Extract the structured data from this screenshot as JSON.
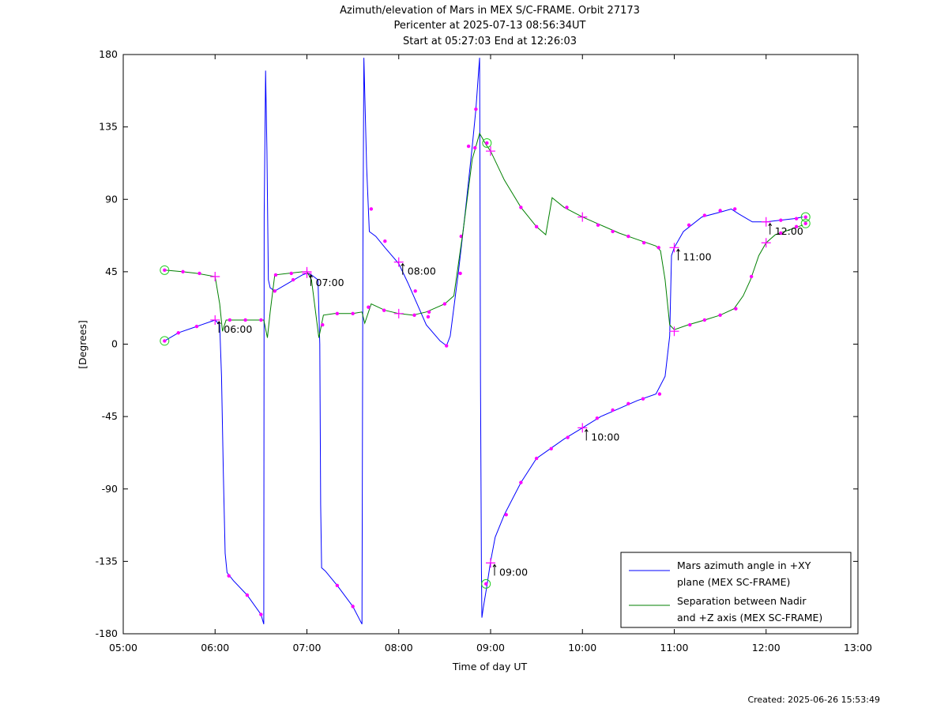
{
  "chart_data": {
    "type": "line",
    "title_lines": [
      "Azimuth/elevation of Mars in MEX S/C-FRAME.  Orbit 27173",
      "Pericenter at 2025-07-13 08:56:34UT",
      "Start at 05:27:03 End at 12:26:03"
    ],
    "xlabel": "Time of day UT",
    "ylabel": "[Degrees]",
    "xlim": [
      5.0,
      13.0
    ],
    "ylim": [
      -180,
      180
    ],
    "x_ticks": [
      5,
      6,
      7,
      8,
      9,
      10,
      11,
      12,
      13
    ],
    "x_tick_labels": [
      "05:00",
      "06:00",
      "07:00",
      "08:00",
      "09:00",
      "10:00",
      "11:00",
      "12:00",
      "13:00"
    ],
    "y_ticks": [
      180,
      135,
      90,
      45,
      0,
      -45,
      -90,
      -135,
      -180
    ],
    "y_tick_labels": [
      "180",
      "135",
      "90",
      "45",
      "0",
      "-45",
      "-90",
      "-135",
      "-180"
    ],
    "grid": false,
    "legend_position": "bottom-right",
    "series": [
      {
        "name": "Mars azimuth angle in +XY plane (MEX SC-FRAME)",
        "legend_lines": [
          "Mars azimuth angle in +XY",
          "plane (MEX SC-FRAME)"
        ],
        "color": "#0000ff",
        "points": [
          [
            5.45,
            2
          ],
          [
            5.6,
            7
          ],
          [
            5.8,
            11
          ],
          [
            6.0,
            15
          ],
          [
            6.05,
            12
          ],
          [
            6.07,
            -20
          ],
          [
            6.09,
            -80
          ],
          [
            6.11,
            -130
          ],
          [
            6.13,
            -142
          ],
          [
            6.2,
            -147
          ],
          [
            6.35,
            -156
          ],
          [
            6.5,
            -168
          ],
          [
            6.53,
            -174
          ],
          [
            6.535,
            80
          ],
          [
            6.55,
            170
          ],
          [
            6.565,
            120
          ],
          [
            6.58,
            40
          ],
          [
            6.6,
            35
          ],
          [
            6.65,
            33
          ],
          [
            6.8,
            38
          ],
          [
            6.95,
            43
          ],
          [
            7.0,
            44
          ],
          [
            7.05,
            43
          ],
          [
            7.12,
            40
          ],
          [
            7.14,
            0
          ],
          [
            7.15,
            -100
          ],
          [
            7.16,
            -139
          ],
          [
            7.2,
            -141
          ],
          [
            7.33,
            -150
          ],
          [
            7.5,
            -163
          ],
          [
            7.6,
            -174
          ],
          [
            7.61,
            60
          ],
          [
            7.62,
            178
          ],
          [
            7.65,
            110
          ],
          [
            7.68,
            70
          ],
          [
            7.75,
            67
          ],
          [
            7.85,
            60
          ],
          [
            8.0,
            50
          ],
          [
            8.1,
            38
          ],
          [
            8.2,
            25
          ],
          [
            8.3,
            12
          ],
          [
            8.45,
            2
          ],
          [
            8.52,
            -1
          ],
          [
            8.56,
            5
          ],
          [
            8.65,
            45
          ],
          [
            8.72,
            80
          ],
          [
            8.8,
            123
          ],
          [
            8.84,
            146
          ],
          [
            8.87,
            170
          ],
          [
            8.88,
            178
          ],
          [
            8.885,
            100
          ],
          [
            8.89,
            -20
          ],
          [
            8.9,
            -140
          ],
          [
            8.905,
            -170
          ],
          [
            8.92,
            -164
          ],
          [
            8.96,
            -150
          ],
          [
            9.0,
            -135
          ],
          [
            9.05,
            -120
          ],
          [
            9.15,
            -106
          ],
          [
            9.33,
            -86
          ],
          [
            9.5,
            -71
          ],
          [
            9.65,
            -65
          ],
          [
            9.8,
            -59
          ],
          [
            10.0,
            -52
          ],
          [
            10.2,
            -45
          ],
          [
            10.4,
            -40
          ],
          [
            10.6,
            -35
          ],
          [
            10.8,
            -31
          ],
          [
            10.9,
            -20
          ],
          [
            10.95,
            5
          ],
          [
            10.97,
            55
          ],
          [
            11.0,
            60
          ],
          [
            11.1,
            70
          ],
          [
            11.3,
            79
          ],
          [
            11.5,
            82
          ],
          [
            11.62,
            84
          ],
          [
            11.7,
            81
          ],
          [
            11.85,
            76
          ],
          [
            12.0,
            76
          ],
          [
            12.15,
            77
          ],
          [
            12.3,
            78
          ],
          [
            12.4,
            79
          ]
        ],
        "markers": [
          [
            5.6,
            7
          ],
          [
            5.8,
            11
          ],
          [
            6.15,
            -144
          ],
          [
            6.35,
            -156
          ],
          [
            6.5,
            -168
          ],
          [
            6.65,
            33
          ],
          [
            6.85,
            40
          ],
          [
            7.33,
            -150
          ],
          [
            7.5,
            -163
          ],
          [
            7.7,
            84
          ],
          [
            7.85,
            64
          ],
          [
            8.18,
            33
          ],
          [
            8.32,
            17
          ],
          [
            8.52,
            -1
          ],
          [
            8.68,
            67
          ],
          [
            8.76,
            123
          ],
          [
            8.84,
            146
          ],
          [
            9.17,
            -106
          ],
          [
            9.33,
            -86
          ],
          [
            9.5,
            -71
          ],
          [
            9.66,
            -65
          ],
          [
            9.84,
            -58
          ],
          [
            10.16,
            -46
          ],
          [
            10.33,
            -41
          ],
          [
            10.5,
            -37
          ],
          [
            10.66,
            -34
          ],
          [
            10.84,
            -31
          ],
          [
            11.16,
            74
          ],
          [
            11.33,
            80
          ],
          [
            11.5,
            83
          ],
          [
            11.66,
            84
          ],
          [
            12.16,
            77
          ],
          [
            12.33,
            78
          ]
        ],
        "hour_markers": [
          [
            6.0,
            15
          ],
          [
            7.0,
            44
          ],
          [
            8.0,
            51
          ],
          [
            9.0,
            -136
          ],
          [
            10.0,
            -52
          ],
          [
            11.0,
            60
          ],
          [
            12.0,
            76
          ]
        ],
        "endpoints": [
          [
            5.45,
            2
          ],
          [
            8.95,
            -149
          ]
        ]
      },
      {
        "name": "Separation between Nadir and +Z axis (MEX SC-FRAME)",
        "legend_lines": [
          "Separation between Nadir",
          "and +Z axis (MEX SC-FRAME)"
        ],
        "color": "#008000",
        "points": [
          [
            5.45,
            46
          ],
          [
            5.65,
            45
          ],
          [
            5.8,
            44
          ],
          [
            6.0,
            42
          ],
          [
            6.05,
            25
          ],
          [
            6.08,
            8
          ],
          [
            6.12,
            15
          ],
          [
            6.3,
            15
          ],
          [
            6.4,
            15
          ],
          [
            6.53,
            15
          ],
          [
            6.57,
            4
          ],
          [
            6.6,
            20
          ],
          [
            6.65,
            43
          ],
          [
            6.8,
            44
          ],
          [
            6.95,
            45
          ],
          [
            7.0,
            45
          ],
          [
            7.05,
            40
          ],
          [
            7.13,
            4
          ],
          [
            7.18,
            18
          ],
          [
            7.3,
            19
          ],
          [
            7.5,
            19
          ],
          [
            7.6,
            20
          ],
          [
            7.63,
            13
          ],
          [
            7.7,
            25
          ],
          [
            7.85,
            21
          ],
          [
            8.0,
            19
          ],
          [
            8.15,
            18
          ],
          [
            8.3,
            20
          ],
          [
            8.5,
            25
          ],
          [
            8.6,
            30
          ],
          [
            8.7,
            70
          ],
          [
            8.8,
            115
          ],
          [
            8.88,
            131
          ],
          [
            8.95,
            124
          ],
          [
            9.0,
            120
          ],
          [
            9.15,
            102
          ],
          [
            9.33,
            85
          ],
          [
            9.5,
            73
          ],
          [
            9.6,
            68
          ],
          [
            9.67,
            91
          ],
          [
            9.8,
            85
          ],
          [
            10.0,
            79
          ],
          [
            10.2,
            74
          ],
          [
            10.4,
            69
          ],
          [
            10.6,
            65
          ],
          [
            10.8,
            61
          ],
          [
            10.85,
            58
          ],
          [
            10.9,
            40
          ],
          [
            10.95,
            12
          ],
          [
            11.0,
            9
          ],
          [
            11.15,
            12
          ],
          [
            11.33,
            15
          ],
          [
            11.5,
            18
          ],
          [
            11.65,
            22
          ],
          [
            11.75,
            30
          ],
          [
            11.83,
            40
          ],
          [
            11.92,
            55
          ],
          [
            12.0,
            63
          ],
          [
            12.1,
            68
          ],
          [
            12.2,
            70
          ],
          [
            12.3,
            72
          ],
          [
            12.4,
            74
          ]
        ],
        "markers": [
          [
            5.65,
            45
          ],
          [
            5.83,
            44
          ],
          [
            6.16,
            15
          ],
          [
            6.33,
            15
          ],
          [
            6.5,
            15
          ],
          [
            6.66,
            43
          ],
          [
            6.83,
            44
          ],
          [
            7.17,
            12
          ],
          [
            7.33,
            19
          ],
          [
            7.5,
            19
          ],
          [
            7.67,
            23
          ],
          [
            7.84,
            21
          ],
          [
            8.17,
            18
          ],
          [
            8.33,
            20
          ],
          [
            8.5,
            25
          ],
          [
            8.67,
            44
          ],
          [
            8.83,
            122
          ],
          [
            9.33,
            85
          ],
          [
            9.5,
            73
          ],
          [
            9.83,
            85
          ],
          [
            10.17,
            74
          ],
          [
            10.33,
            70
          ],
          [
            10.5,
            67
          ],
          [
            10.67,
            63
          ],
          [
            10.83,
            60
          ],
          [
            11.17,
            12
          ],
          [
            11.33,
            15
          ],
          [
            11.5,
            18
          ],
          [
            11.67,
            22
          ],
          [
            11.84,
            42
          ],
          [
            12.16,
            69
          ],
          [
            12.33,
            73
          ]
        ],
        "hour_markers": [
          [
            6.0,
            42
          ],
          [
            7.0,
            45
          ],
          [
            8.0,
            19
          ],
          [
            9.0,
            120
          ],
          [
            10.0,
            79
          ],
          [
            11.0,
            8
          ],
          [
            12.0,
            63
          ]
        ],
        "endpoints": [
          [
            5.45,
            46
          ],
          [
            8.96,
            125
          ],
          [
            12.43,
            79
          ],
          [
            12.43,
            75
          ]
        ]
      }
    ],
    "time_annotations": [
      {
        "label": "06:00",
        "x": 6.0,
        "y": 15
      },
      {
        "label": "07:00",
        "x": 7.0,
        "y": 44
      },
      {
        "label": "08:00",
        "x": 8.0,
        "y": 51
      },
      {
        "label": "09:00",
        "x": 9.0,
        "y": -136
      },
      {
        "label": "10:00",
        "x": 10.0,
        "y": -52
      },
      {
        "label": "11:00",
        "x": 11.0,
        "y": 60
      },
      {
        "label": "12:00",
        "x": 12.0,
        "y": 76
      }
    ]
  },
  "footer": {
    "created": "Created: 2025-06-26 15:53:49"
  }
}
